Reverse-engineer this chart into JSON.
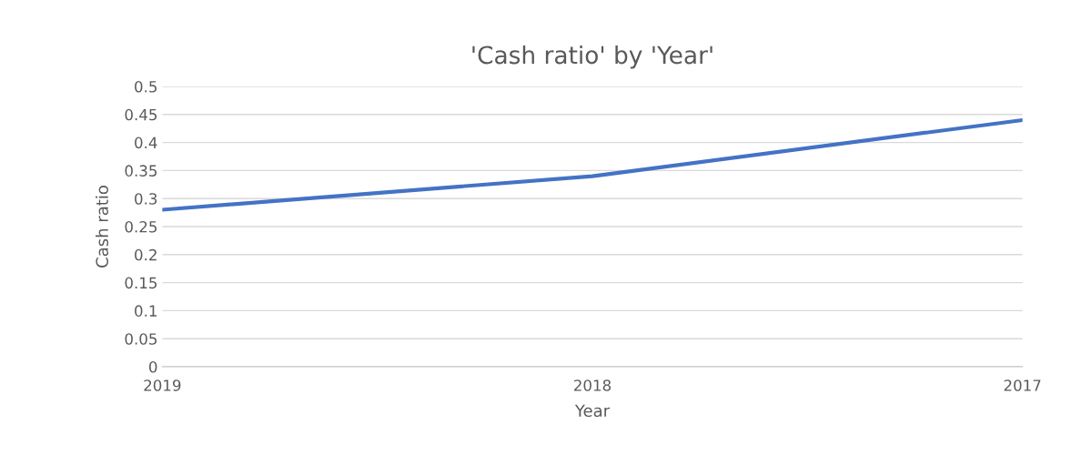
{
  "chart_data": {
    "type": "line",
    "title": "'Cash ratio' by 'Year'",
    "xlabel": "Year",
    "ylabel": "Cash ratio",
    "categories": [
      "2019",
      "2018",
      "2017"
    ],
    "series": [
      {
        "color": "#4472c4",
        "values": [
          0.28,
          0.34,
          0.44
        ]
      }
    ],
    "ylim": [
      0,
      0.5
    ],
    "yticks": [
      0,
      0.05,
      0.1,
      0.15,
      0.2,
      0.25,
      0.3,
      0.35,
      0.4,
      0.45,
      0.5
    ],
    "grid": "y",
    "marker": "none",
    "line_style": "solid"
  }
}
